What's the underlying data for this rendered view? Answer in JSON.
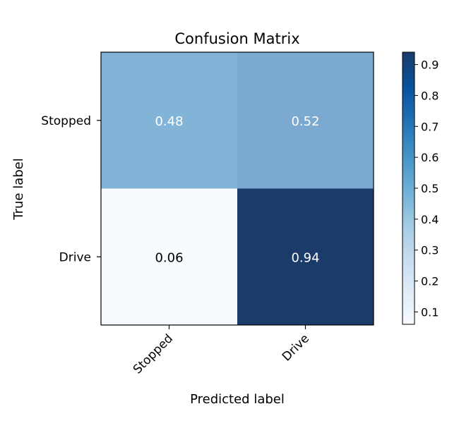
{
  "chart_data": {
    "type": "heatmap",
    "title": "Confusion Matrix",
    "xlabel": "Predicted label",
    "ylabel": "True label",
    "x_categories": [
      "Stopped",
      "Drive"
    ],
    "y_categories": [
      "Stopped",
      "Drive"
    ],
    "values": [
      [
        0.48,
        0.52
      ],
      [
        0.06,
        0.94
      ]
    ],
    "value_labels": [
      [
        "0.48",
        "0.52"
      ],
      [
        "0.06",
        "0.94"
      ]
    ],
    "colormap": "Blues",
    "colorbar": {
      "range": [
        0.06,
        0.94
      ],
      "ticks": [
        0.1,
        0.2,
        0.3,
        0.4,
        0.5,
        0.6,
        0.7,
        0.8,
        0.9
      ],
      "tick_labels": [
        "0.1",
        "0.2",
        "0.3",
        "0.4",
        "0.5",
        "0.6",
        "0.7",
        "0.8",
        "0.9"
      ]
    },
    "cell_text_colors": [
      [
        "#ffffff",
        "#ffffff"
      ],
      [
        "#000000",
        "#ffffff"
      ]
    ],
    "cell_colors": [
      [
        "#82b4d8",
        "#7ba9d0"
      ],
      [
        "#f7fbff",
        "#1b3b6b"
      ]
    ]
  }
}
